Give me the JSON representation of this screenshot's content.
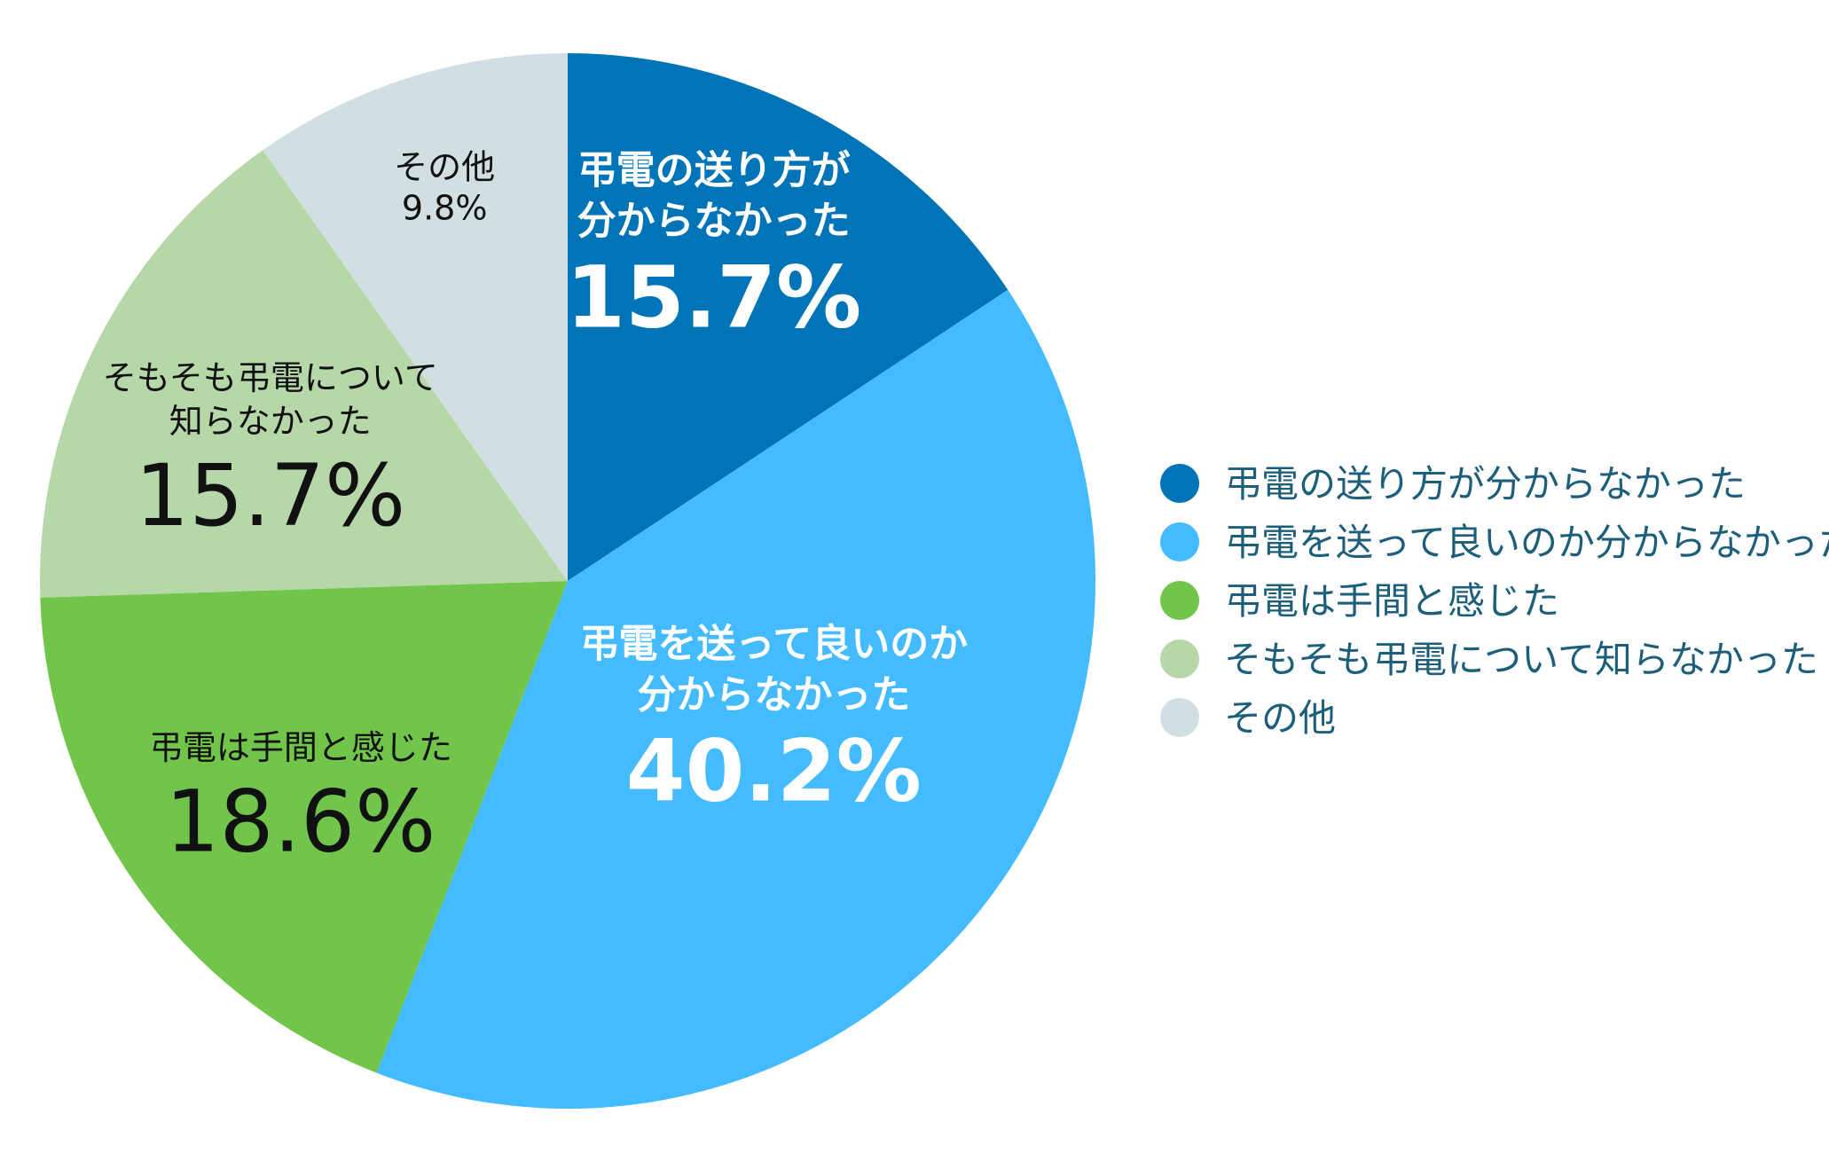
{
  "chart_data": {
    "type": "pie",
    "start": "top",
    "direction": "clockwise",
    "slices": [
      {
        "label": "弔電の送り方が分からなかった",
        "value": 15.7,
        "value_label": "15.7%",
        "color": "#0074b7",
        "label_lines": [
          "弔電の送り方が",
          "分からなかった"
        ]
      },
      {
        "label": "弔電を送って良いのか分からなかった",
        "value": 40.2,
        "value_label": "40.2%",
        "color": "#45bbff",
        "label_lines": [
          "弔電を送って良いのか",
          "分からなかった"
        ]
      },
      {
        "label": "弔電は手間と感じた",
        "value": 18.6,
        "value_label": "18.6%",
        "color": "#72c54b",
        "label_lines": [
          "弔電は手間と感じた"
        ]
      },
      {
        "label": "そもそも弔電について知らなかった",
        "value": 15.7,
        "value_label": "15.7%",
        "color": "#b6d8a9",
        "label_lines": [
          "そもそも弔電について",
          "知らなかった"
        ]
      },
      {
        "label": "その他",
        "value": 9.8,
        "value_label": "9.8%",
        "color": "#d1dfe3",
        "label_lines": [
          "その他"
        ]
      }
    ],
    "legend": {
      "position": "right",
      "text_color": "#1d5f7a"
    }
  }
}
